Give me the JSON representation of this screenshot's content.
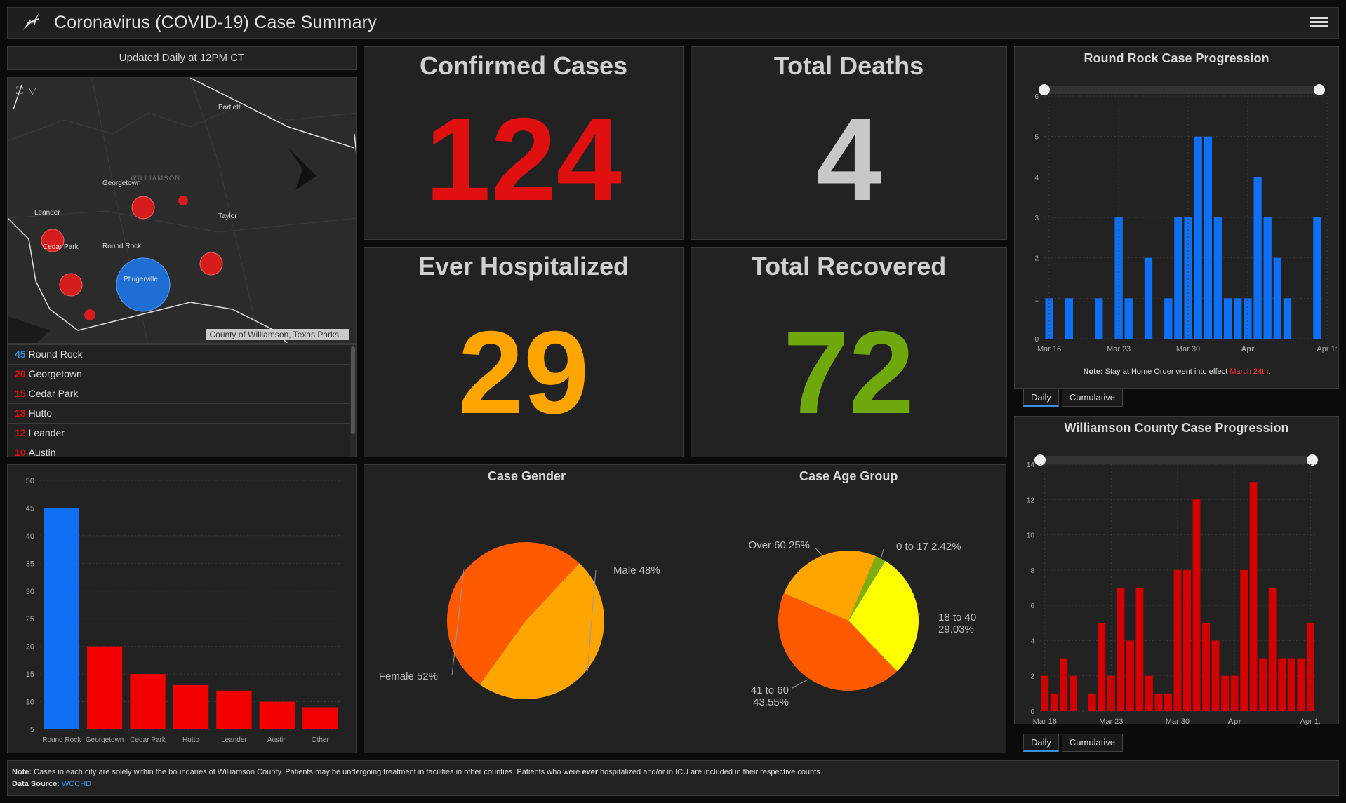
{
  "header": {
    "title": "Coronavirus (COVID-19) Case Summary"
  },
  "updated": "Updated Daily at 12PM CT",
  "map": {
    "labels": [
      "Bartlett",
      "Georgetown",
      "WILLIAMSON",
      "Leander",
      "Taylor",
      "Cedar Park",
      "Round Rock",
      "Pflugerville"
    ],
    "attribution": "County of Williamson, Texas Parks..."
  },
  "city_list": [
    {
      "count": "45",
      "name": "Round Rock",
      "color": "#3b8de0"
    },
    {
      "count": "20",
      "name": "Georgetown",
      "color": "#e01010"
    },
    {
      "count": "15",
      "name": "Cedar Park",
      "color": "#e01010"
    },
    {
      "count": "13",
      "name": "Hutto",
      "color": "#e01010"
    },
    {
      "count": "12",
      "name": "Leander",
      "color": "#e01010"
    },
    {
      "count": "10",
      "name": "Austin",
      "color": "#e01010"
    }
  ],
  "kpis": {
    "confirmed": {
      "title": "Confirmed Cases",
      "value": "124",
      "color": "#e01010"
    },
    "deaths": {
      "title": "Total Deaths",
      "value": "4",
      "color": "#c8c8c8"
    },
    "hospitalized": {
      "title": "Ever Hospitalized",
      "value": "29",
      "color": "#ffa500"
    },
    "recovered": {
      "title": "Total Recovered",
      "value": "72",
      "color": "#6fa80c"
    }
  },
  "pies": {
    "gender_title": "Case Gender",
    "age_title": "Case Age Group"
  },
  "charts": {
    "rr_title": "Round Rock Case Progression",
    "rr_note_label": "Note:",
    "rr_note_text": " Stay at Home Order went into effect ",
    "rr_note_date": "March 24th",
    "rr_note_end": ".",
    "wc_title": "Williamson County Case Progression",
    "tab_daily": "Daily",
    "tab_cumulative": "Cumulative"
  },
  "footer": {
    "note_label": "Note:",
    "note_text_1": " Cases in each city are solely within the boundaries of Williamson County. Patients may be undergoing treatment in facilities in other counties. Patients who were ",
    "note_bold": "ever",
    "note_text_2": " hospitalized and/or in ICU are included in their respective counts.",
    "source_label": "Data Source:",
    "source_link": "WCCHD"
  },
  "chart_data": [
    {
      "id": "city-bar",
      "type": "bar",
      "title": "",
      "categories": [
        "Round Rock",
        "Georgetown",
        "Cedar Park",
        "Hutto",
        "Leander",
        "Austin",
        "Other"
      ],
      "values": [
        45,
        20,
        15,
        13,
        12,
        10,
        9
      ],
      "colors": [
        "#0f6ff5",
        "#f20000",
        "#f20000",
        "#f20000",
        "#f20000",
        "#f20000",
        "#f20000"
      ],
      "ylim": [
        5,
        50
      ],
      "yticks": [
        5,
        10,
        15,
        20,
        25,
        30,
        35,
        40,
        45,
        50
      ]
    },
    {
      "id": "gender-pie",
      "type": "pie",
      "title": "Case Gender",
      "slices": [
        {
          "label": "Male 48%",
          "value": 48,
          "color": "#ffa500"
        },
        {
          "label": "Female 52%",
          "value": 52,
          "color": "#ff5a00"
        }
      ]
    },
    {
      "id": "age-pie",
      "type": "pie",
      "title": "Case Age Group",
      "slices": [
        {
          "label": "0 to 17 2.42%",
          "value": 2.42,
          "color": "#7cae14"
        },
        {
          "label": "18 to 40|29.03%",
          "value": 29.03,
          "color": "#ffff00"
        },
        {
          "label": "41 to 60|43.55%",
          "value": 43.55,
          "color": "#ff5a00"
        },
        {
          "label": "Over 60 25%",
          "value": 25,
          "color": "#ffa500"
        }
      ]
    },
    {
      "id": "rr-progression",
      "type": "bar",
      "title": "Round Rock Case Progression",
      "xticks": [
        "Mar 16",
        "Mar 23",
        "Mar 30",
        "Apr",
        "Apr 1:"
      ],
      "xtick_index": [
        0,
        7,
        14,
        20,
        28
      ],
      "values": [
        1,
        0,
        1,
        0,
        0,
        1,
        0,
        3,
        1,
        0,
        2,
        0,
        1,
        3,
        3,
        5,
        5,
        3,
        1,
        1,
        1,
        4,
        3,
        2,
        1,
        0,
        0,
        3
      ],
      "start_offset": 0,
      "color": "#0f6ff5",
      "ylim": [
        0,
        6
      ],
      "yticks": [
        0,
        1,
        2,
        3,
        4,
        5,
        6
      ]
    },
    {
      "id": "wc-progression",
      "type": "bar",
      "title": "Williamson County Case Progression",
      "xticks": [
        "Mar 16",
        "Mar 23",
        "Mar 30",
        "Apr",
        "Apr 1:"
      ],
      "xtick_index": [
        0,
        7,
        14,
        20,
        28
      ],
      "values": [
        2,
        1,
        3,
        2,
        0,
        1,
        5,
        2,
        7,
        4,
        7,
        2,
        1,
        1,
        8,
        8,
        12,
        5,
        4,
        2,
        2,
        8,
        13,
        3,
        7,
        3,
        3,
        3,
        5
      ],
      "color": "#d40000",
      "ylim": [
        0,
        14
      ],
      "yticks": [
        0,
        2,
        4,
        6,
        8,
        10,
        12,
        14
      ]
    }
  ]
}
